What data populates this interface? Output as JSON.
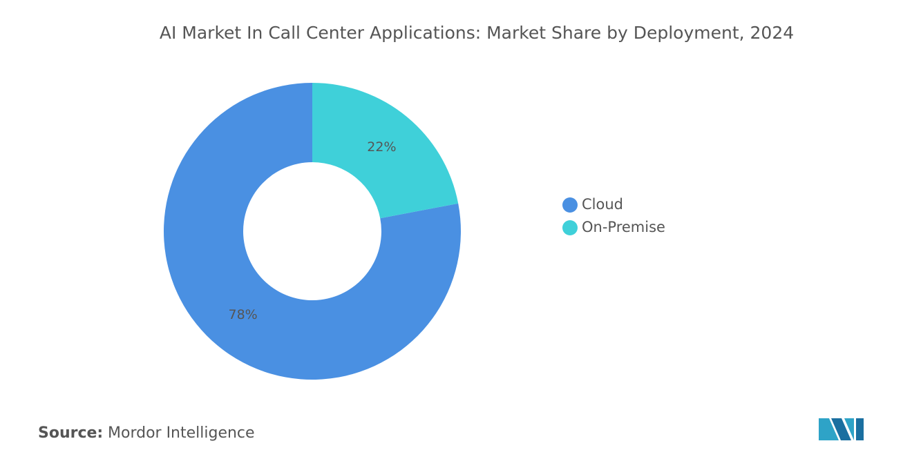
{
  "chart_data": {
    "type": "pie",
    "donut": true,
    "title": "AI Market In Call Center Applications: Market Share by Deployment, 2024",
    "categories": [
      "Cloud",
      "On-Premise"
    ],
    "values": [
      78,
      22
    ],
    "value_labels": [
      "78%",
      "22%"
    ],
    "colors": [
      "#4a90e2",
      "#3fd0d9"
    ],
    "source_label": "Source:",
    "source": "Mordor Intelligence"
  }
}
